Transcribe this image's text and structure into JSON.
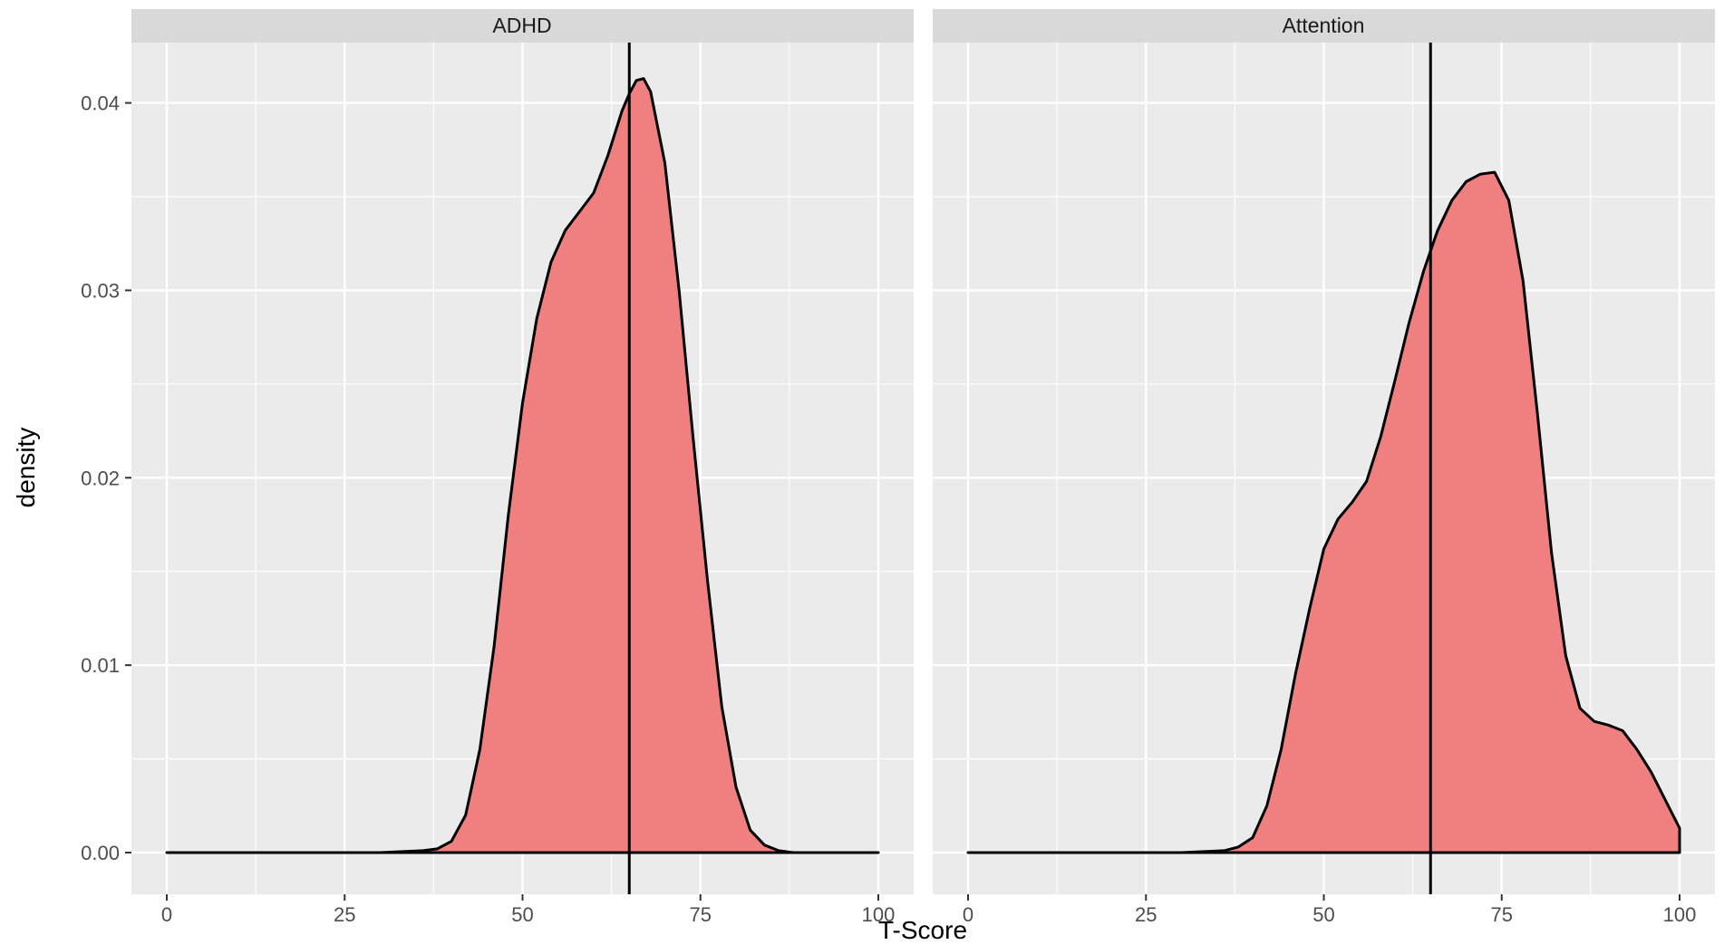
{
  "colors": {
    "fill": "#f08080",
    "line": "#000000",
    "panel": "#ebebeb",
    "strip": "#d9d9d9",
    "grid": "#ffffff"
  },
  "chart_data": [
    {
      "type": "area",
      "panel": "ADHD",
      "xlabel": "T-Score",
      "ylabel": "density",
      "xlim": [
        0,
        100
      ],
      "ylim": [
        0,
        0.042
      ],
      "x_ticks": [
        "0",
        "25",
        "50",
        "75",
        "100"
      ],
      "y_ticks": [
        "0.00",
        "0.01",
        "0.02",
        "0.03",
        "0.04"
      ],
      "grid": true,
      "vline_x": 65,
      "x": [
        0,
        10,
        20,
        30,
        36,
        38,
        40,
        42,
        44,
        46,
        48,
        50,
        52,
        54,
        56,
        58,
        60,
        62,
        64,
        65,
        66,
        67,
        68,
        70,
        72,
        74,
        76,
        78,
        80,
        82,
        84,
        86,
        88,
        90,
        100
      ],
      "values": [
        0,
        0,
        0,
        0,
        0.0001,
        0.0002,
        0.0006,
        0.002,
        0.0055,
        0.011,
        0.018,
        0.024,
        0.0285,
        0.0315,
        0.0332,
        0.0342,
        0.0352,
        0.0372,
        0.0396,
        0.0405,
        0.0412,
        0.0413,
        0.0406,
        0.0368,
        0.03,
        0.022,
        0.0145,
        0.0078,
        0.0035,
        0.0012,
        0.0004,
        0.0001,
        0,
        0,
        0
      ]
    },
    {
      "type": "area",
      "panel": "Attention",
      "xlabel": "T-Score",
      "ylabel": "density",
      "xlim": [
        0,
        100
      ],
      "ylim": [
        0,
        0.042
      ],
      "x_ticks": [
        "0",
        "25",
        "50",
        "75",
        "100"
      ],
      "y_ticks": [
        "0.00",
        "0.01",
        "0.02",
        "0.03",
        "0.04"
      ],
      "grid": true,
      "vline_x": 65,
      "x": [
        0,
        10,
        20,
        30,
        36,
        38,
        40,
        42,
        44,
        46,
        48,
        50,
        52,
        54,
        56,
        58,
        60,
        62,
        64,
        66,
        68,
        70,
        72,
        74,
        76,
        78,
        80,
        82,
        84,
        86,
        88,
        90,
        92,
        94,
        96,
        98,
        100
      ],
      "values": [
        0,
        0,
        0,
        0,
        0.0001,
        0.0003,
        0.0008,
        0.0025,
        0.0055,
        0.0095,
        0.013,
        0.0162,
        0.0178,
        0.0187,
        0.0198,
        0.0222,
        0.0252,
        0.0283,
        0.031,
        0.0332,
        0.0348,
        0.0358,
        0.0362,
        0.0363,
        0.0348,
        0.0305,
        0.0235,
        0.016,
        0.0105,
        0.0077,
        0.007,
        0.0068,
        0.0065,
        0.0055,
        0.0043,
        0.0028,
        0.0013
      ]
    }
  ]
}
